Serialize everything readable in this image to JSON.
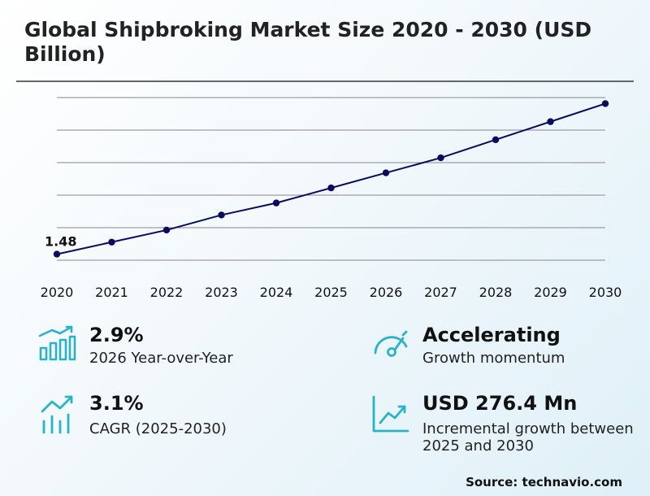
{
  "title": "Global Shipbroking Market Size 2020 - 2030 (USD Billion)",
  "chart_data": {
    "type": "line",
    "x": [
      "2020",
      "2021",
      "2022",
      "2023",
      "2024",
      "2025",
      "2026",
      "2027",
      "2028",
      "2029",
      "2030"
    ],
    "series": [
      {
        "values": [
          1.48,
          1.52,
          1.56,
          1.61,
          1.65,
          1.7,
          1.75,
          1.8,
          1.86,
          1.92,
          1.98
        ]
      }
    ],
    "annotations": [
      {
        "x": "2020",
        "text": "1.48"
      }
    ],
    "ylim": [
      1.46,
      2.0
    ],
    "grid": true,
    "line_color": "#0b0b5e"
  },
  "stats": [
    {
      "value": "2.9%",
      "desc": "2026 Year-over-Year",
      "icon": "bar-chart-icon"
    },
    {
      "value": "Accelerating",
      "desc": "Growth momentum",
      "icon": "gauge-icon"
    },
    {
      "value": "3.1%",
      "desc": "CAGR (2025-2030)",
      "icon": "trend-bars-icon"
    },
    {
      "value": "USD 276.4 Mn",
      "desc": "Incremental growth between 2025 and 2030",
      "icon": "line-chart-icon"
    }
  ],
  "source": "Source: technavio.com",
  "colors": {
    "accent": "#2ab3c8",
    "line": "#0b0b5e",
    "grid": "#888888"
  }
}
